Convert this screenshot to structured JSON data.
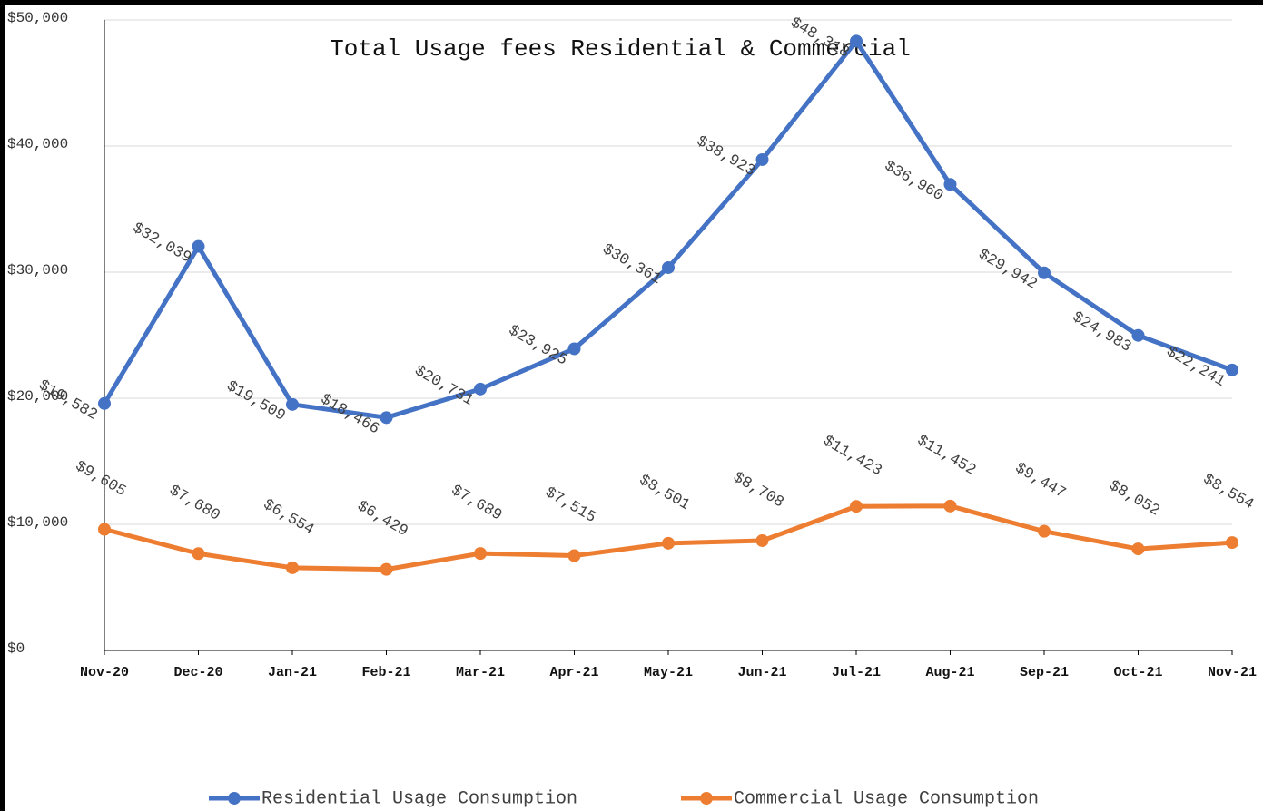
{
  "chart_data": {
    "type": "line",
    "title": "Total Usage fees Residential & Commercial",
    "categories": [
      "Nov-20",
      "Dec-20",
      "Jan-21",
      "Feb-21",
      "Mar-21",
      "Apr-21",
      "May-21",
      "Jun-21",
      "Jul-21",
      "Aug-21",
      "Sep-21",
      "Oct-21",
      "Nov-21"
    ],
    "series": [
      {
        "name": "Residential Usage Consumption",
        "color": "#4472c4",
        "values": [
          19582,
          32039,
          19509,
          18466,
          20731,
          23925,
          30361,
          38923,
          48318,
          36960,
          29942,
          24983,
          22241
        ],
        "value_labels": [
          "$19,582",
          "$32,039",
          "$19,509",
          "$18,466",
          "$20,731",
          "$23,925",
          "$30,361",
          "$38,923",
          "$48,318",
          "$36,960",
          "$29,942",
          "$24,983",
          "$22,241"
        ]
      },
      {
        "name": "Commercial Usage Consumption",
        "color": "#ed7d31",
        "values": [
          9605,
          7680,
          6554,
          6429,
          7689,
          7515,
          8501,
          8708,
          11423,
          11452,
          9447,
          8052,
          8554
        ],
        "value_labels": [
          "$9,605",
          "$7,680",
          "$6,554",
          "$6,429",
          "$7,689",
          "$7,515",
          "$8,501",
          "$8,708",
          "$11,423",
          "$11,452",
          "$9,447",
          "$8,052",
          "$8,554"
        ]
      }
    ],
    "ylim": [
      0,
      50000
    ],
    "yticks": [
      {
        "value": 0,
        "label": "$0"
      },
      {
        "value": 10000,
        "label": "$10,000"
      },
      {
        "value": 20000,
        "label": "$20,000"
      },
      {
        "value": 30000,
        "label": "$30,000"
      },
      {
        "value": 40000,
        "label": "$40,000"
      },
      {
        "value": 50000,
        "label": "$50,000"
      }
    ],
    "grid": true,
    "legend": "bottom"
  }
}
